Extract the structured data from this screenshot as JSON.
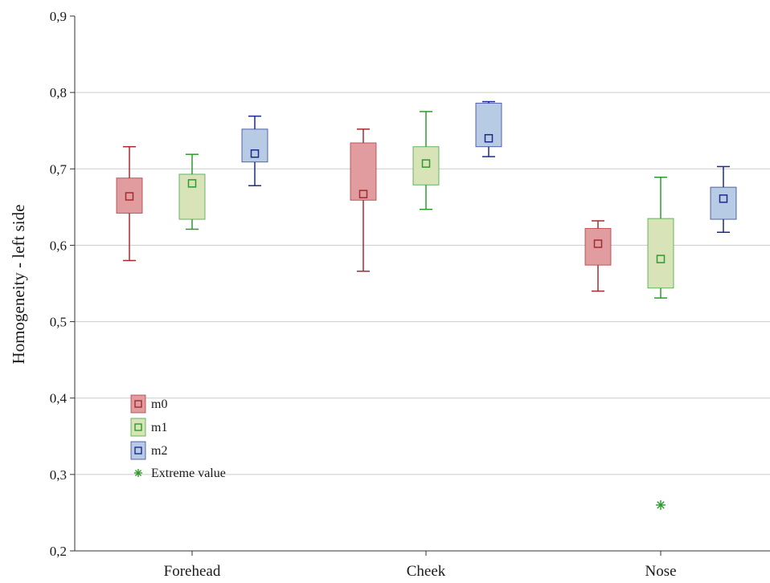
{
  "chart_data": {
    "type": "boxplot",
    "title": "",
    "xlabel": "",
    "ylabel": "Homogeneity - left side",
    "ylim": [
      0.2,
      0.9
    ],
    "yticks": [
      "0,2",
      "0,3",
      "0,4",
      "0,5",
      "0,6",
      "0,7",
      "0,8",
      "0,9"
    ],
    "grid": true,
    "categories": [
      "Forehead",
      "Cheek",
      "Nose"
    ],
    "series": [
      {
        "name": "m0",
        "fill": "#e09c9e",
        "stroke": "#a52a2f",
        "boxes": [
          {
            "whisker_low": 0.58,
            "q1": 0.642,
            "median": 0.664,
            "q3": 0.688,
            "whisker_high": 0.729
          },
          {
            "whisker_low": 0.566,
            "q1": 0.659,
            "median": 0.667,
            "q3": 0.734,
            "whisker_high": 0.752
          },
          {
            "whisker_low": 0.54,
            "q1": 0.574,
            "median": 0.602,
            "q3": 0.622,
            "whisker_high": 0.632
          }
        ]
      },
      {
        "name": "m1",
        "fill": "#d8e4b8",
        "stroke": "#2c9a2c",
        "boxes": [
          {
            "whisker_low": 0.621,
            "q1": 0.634,
            "median": 0.681,
            "q3": 0.693,
            "whisker_high": 0.719
          },
          {
            "whisker_low": 0.647,
            "q1": 0.679,
            "median": 0.707,
            "q3": 0.729,
            "whisker_high": 0.775
          },
          {
            "whisker_low": 0.531,
            "q1": 0.544,
            "median": 0.582,
            "q3": 0.635,
            "whisker_high": 0.689
          }
        ]
      },
      {
        "name": "m2",
        "fill": "#b8cbe4",
        "stroke": "#1d2a8c",
        "boxes": [
          {
            "whisker_low": 0.678,
            "q1": 0.709,
            "median": 0.72,
            "q3": 0.752,
            "whisker_high": 0.769
          },
          {
            "whisker_low": 0.716,
            "q1": 0.729,
            "median": 0.74,
            "q3": 0.786,
            "whisker_high": 0.788
          },
          {
            "whisker_low": 0.617,
            "q1": 0.634,
            "median": 0.661,
            "q3": 0.676,
            "whisker_high": 0.703
          }
        ]
      }
    ],
    "extreme_values": [
      {
        "category": "Nose",
        "series": "m1",
        "value": 0.26
      }
    ],
    "legend": {
      "placement": "lower-left",
      "items": [
        "m0",
        "m1",
        "m2",
        "Extreme value"
      ]
    },
    "colors": {
      "grid": "#cccccc",
      "axis": "#333333",
      "extreme": "#2c9a2c"
    }
  }
}
